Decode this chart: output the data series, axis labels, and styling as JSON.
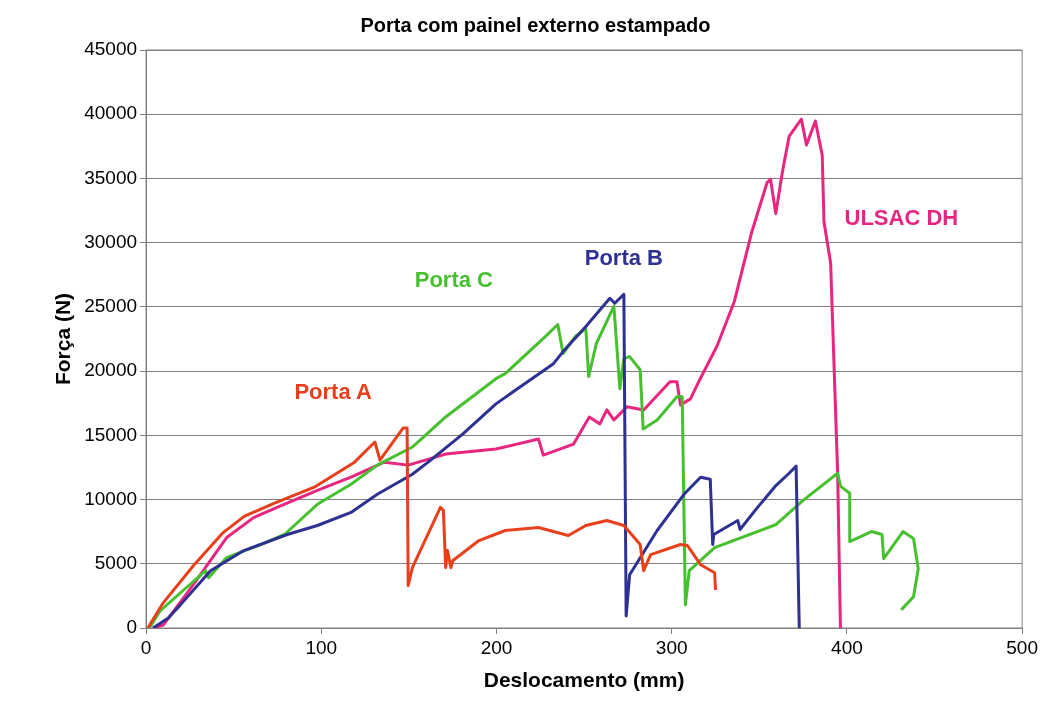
{
  "chart_data": {
    "type": "line",
    "title": "Porta com painel externo estampado",
    "xlabel": "Deslocamento (mm)",
    "ylabel": "Força (N)",
    "xlim": [
      0,
      500
    ],
    "xticks": [
      0,
      100,
      200,
      300,
      400,
      500
    ],
    "ylim": [
      0,
      45000
    ],
    "yticks": [
      0,
      5000,
      10000,
      15000,
      20000,
      25000,
      30000,
      35000,
      40000,
      45000
    ],
    "grid": "y",
    "legend": false,
    "marker": "none",
    "line_style": "solid",
    "series": [
      {
        "name": "Porta A",
        "color": "#e8401c",
        "x": [
          1,
          9.8,
          27,
          44,
          56,
          73,
          96,
          119,
          130.6,
          133.5,
          146.7,
          149,
          149.6,
          152,
          168,
          169.7,
          171,
          172,
          174,
          175,
          190,
          205,
          224,
          241,
          251,
          263,
          272.7,
          282,
          284,
          288,
          305,
          309,
          316.5,
          324.5,
          325
        ],
        "values": [
          0,
          1960,
          4850,
          7430,
          8690,
          9700,
          10960,
          12910,
          14480,
          13070,
          15570,
          15570,
          3290,
          4700,
          9390,
          9160,
          4700,
          6030,
          4700,
          5240,
          6810,
          7590,
          7830,
          7200,
          7980,
          8370,
          7980,
          6500,
          4460,
          5710,
          6500,
          6420,
          4930,
          4300,
          2970
        ]
      },
      {
        "name": "Porta B",
        "color": "#2e3192",
        "x": [
          4,
          12.7,
          19.6,
          36.8,
          55.8,
          80.6,
          97.8,
          117,
          132,
          152,
          161,
          180.7,
          199.7,
          232.5,
          238,
          251,
          264.7,
          267.5,
          272.7,
          274,
          276,
          291.7,
          307,
          316.5,
          322,
          323.4,
          324,
          337.7,
          339,
          349,
          359.6,
          367,
          371,
          372.8
        ],
        "values": [
          0,
          780,
          1800,
          4460,
          6030,
          7280,
          7980,
          9000,
          10410,
          11970,
          12910,
          15100,
          17450,
          20580,
          21520,
          23480,
          25670,
          25280,
          25980,
          940,
          4150,
          7590,
          10410,
          11740,
          11580,
          6500,
          7280,
          8370,
          7670,
          9390,
          11110,
          12050,
          12600,
          0
        ]
      },
      {
        "name": "Porta C",
        "color": "#47c02f",
        "x": [
          2,
          8,
          21,
          34,
          35.7,
          46,
          65.6,
          79,
          97.8,
          117,
          132,
          152,
          171,
          199.7,
          205,
          228,
          235,
          238,
          245,
          251,
          252.6,
          257,
          267,
          270.4,
          272.7,
          276,
          282,
          283.7,
          291.7,
          303,
          306,
          307.8,
          310,
          324.5,
          359.6,
          375,
          394.7,
          396.4,
          401.6,
          401.6,
          414,
          420,
          421,
          432,
          438,
          440.7,
          438,
          431
        ],
        "values": [
          0,
          1330,
          2900,
          4460,
          3910,
          5480,
          6500,
          7280,
          9630,
          11190,
          12680,
          14090,
          16430,
          19410,
          19800,
          22700,
          23630,
          21370,
          22700,
          23320,
          19570,
          22150,
          25040,
          18630,
          20970,
          21130,
          20110,
          15500,
          16200,
          18000,
          18000,
          1800,
          4460,
          6260,
          8060,
          9940,
          12050,
          11030,
          10490,
          6730,
          7510,
          7280,
          5400,
          7510,
          6960,
          4620,
          2430,
          1410
        ]
      },
      {
        "name": "ULSAC DH",
        "color": "#e8257f",
        "x": [
          4,
          9.8,
          27,
          46,
          61.6,
          78.8,
          97.8,
          117,
          136,
          149.6,
          171,
          199.7,
          224,
          226.7,
          244,
          253,
          259,
          263,
          267,
          274.5,
          284,
          299,
          303,
          305,
          310.7,
          316,
          326,
          335.8,
          345.6,
          354.4,
          356.4,
          359.4,
          363.3,
          367,
          374,
          376.9,
          382,
          385.9,
          386.9,
          390.7,
          394.7,
          396.3
        ],
        "values": [
          0,
          230,
          3370,
          7040,
          8610,
          9630,
          10720,
          11740,
          12910,
          12680,
          13540,
          13930,
          14710,
          13460,
          14320,
          16430,
          15890,
          16980,
          16200,
          17220,
          16980,
          19170,
          19170,
          17370,
          17840,
          19330,
          21990,
          25440,
          30790,
          34670,
          34930,
          32260,
          35610,
          38270,
          39610,
          37600,
          39470,
          36800,
          31620,
          28410,
          12080,
          0
        ]
      }
    ]
  }
}
